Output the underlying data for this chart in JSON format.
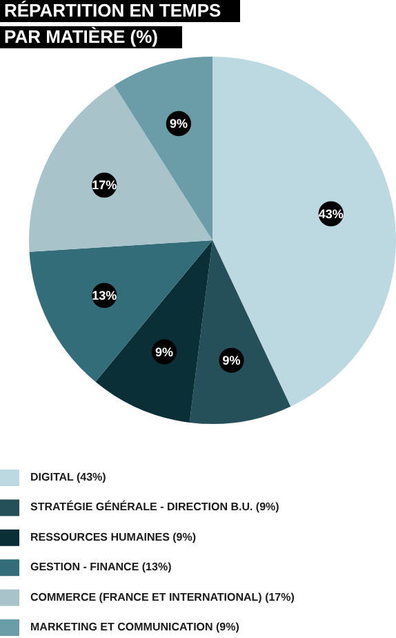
{
  "chart_data": {
    "type": "pie",
    "title": "RÉPARTITION EN TEMPS\nPAR MATIÈRE (%)",
    "categories": [
      "DIGITAL (43%)",
      "STRATÉGIE GÉNÉRALE - DIRECTION B.U. (9%)",
      "RESSOURCES HUMAINES (9%)",
      "GESTION - FINANCE (13%)",
      "COMMERCE (FRANCE ET INTERNATIONAL) (17%)",
      "MARKETING ET COMMUNICATION (9%)"
    ],
    "values": [
      43,
      9,
      9,
      13,
      17,
      9
    ],
    "value_labels": [
      "43%",
      "9%",
      "9%",
      "13%",
      "17%",
      "9%"
    ],
    "colors": [
      "#bcd9e1",
      "#25505a",
      "#0a2f36",
      "#326d79",
      "#a8c3ca",
      "#6a9da7"
    ],
    "legend": "bottom"
  }
}
